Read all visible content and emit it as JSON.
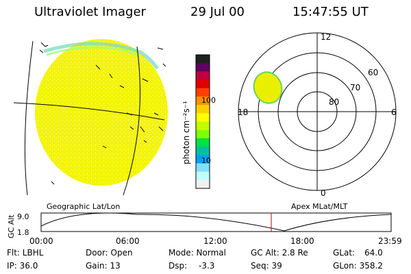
{
  "header": {
    "title": "Ultraviolet Imager",
    "date": "29 Jul 00",
    "time": "15:47:55 UT"
  },
  "colorbar": {
    "label": "photon cm⁻²s⁻¹",
    "ticks": [
      "100",
      "10"
    ],
    "colors": [
      "#202020",
      "#600060",
      "#c00040",
      "#e00000",
      "#ff4000",
      "#ff9000",
      "#ffd000",
      "#ffff00",
      "#c0ff00",
      "#80ff00",
      "#00e040",
      "#00c0a0",
      "#00a0ff",
      "#80e0ff",
      "#c0ffff",
      "#f0f0f0"
    ]
  },
  "polar_plot": {
    "lat_labels": [
      "60",
      "70",
      "80"
    ],
    "mlt_labels": {
      "top": "12",
      "left": "18",
      "right": "6",
      "bottom": "0"
    }
  },
  "projection_labels": {
    "geographic": "Geographic Lat/Lon",
    "apex": "Apex MLat/MLT"
  },
  "orbit_strip": {
    "y_label": "GC Alt",
    "y_ticks": [
      "9.0",
      "1.8"
    ],
    "time_ticks": [
      "00:00",
      "06:00",
      "12:00",
      "18:00",
      "23:59"
    ],
    "current_time_marker": "15:47:55",
    "marker_color": "#c00000"
  },
  "info": {
    "flt": "Flt: LBHL",
    "ip": "IP: 36.0",
    "door": "Door: Open",
    "gain": "Gain: 13",
    "mode": "Mode: Normal",
    "dsp": "Dsp:",
    "dsp_value": "-3.3",
    "gc_alt": "GC Alt: 2.8 Re",
    "seq": "Seq: 39",
    "glat": "GLat:",
    "glat_value": "64.0",
    "glon": "GLon: 358.2"
  }
}
